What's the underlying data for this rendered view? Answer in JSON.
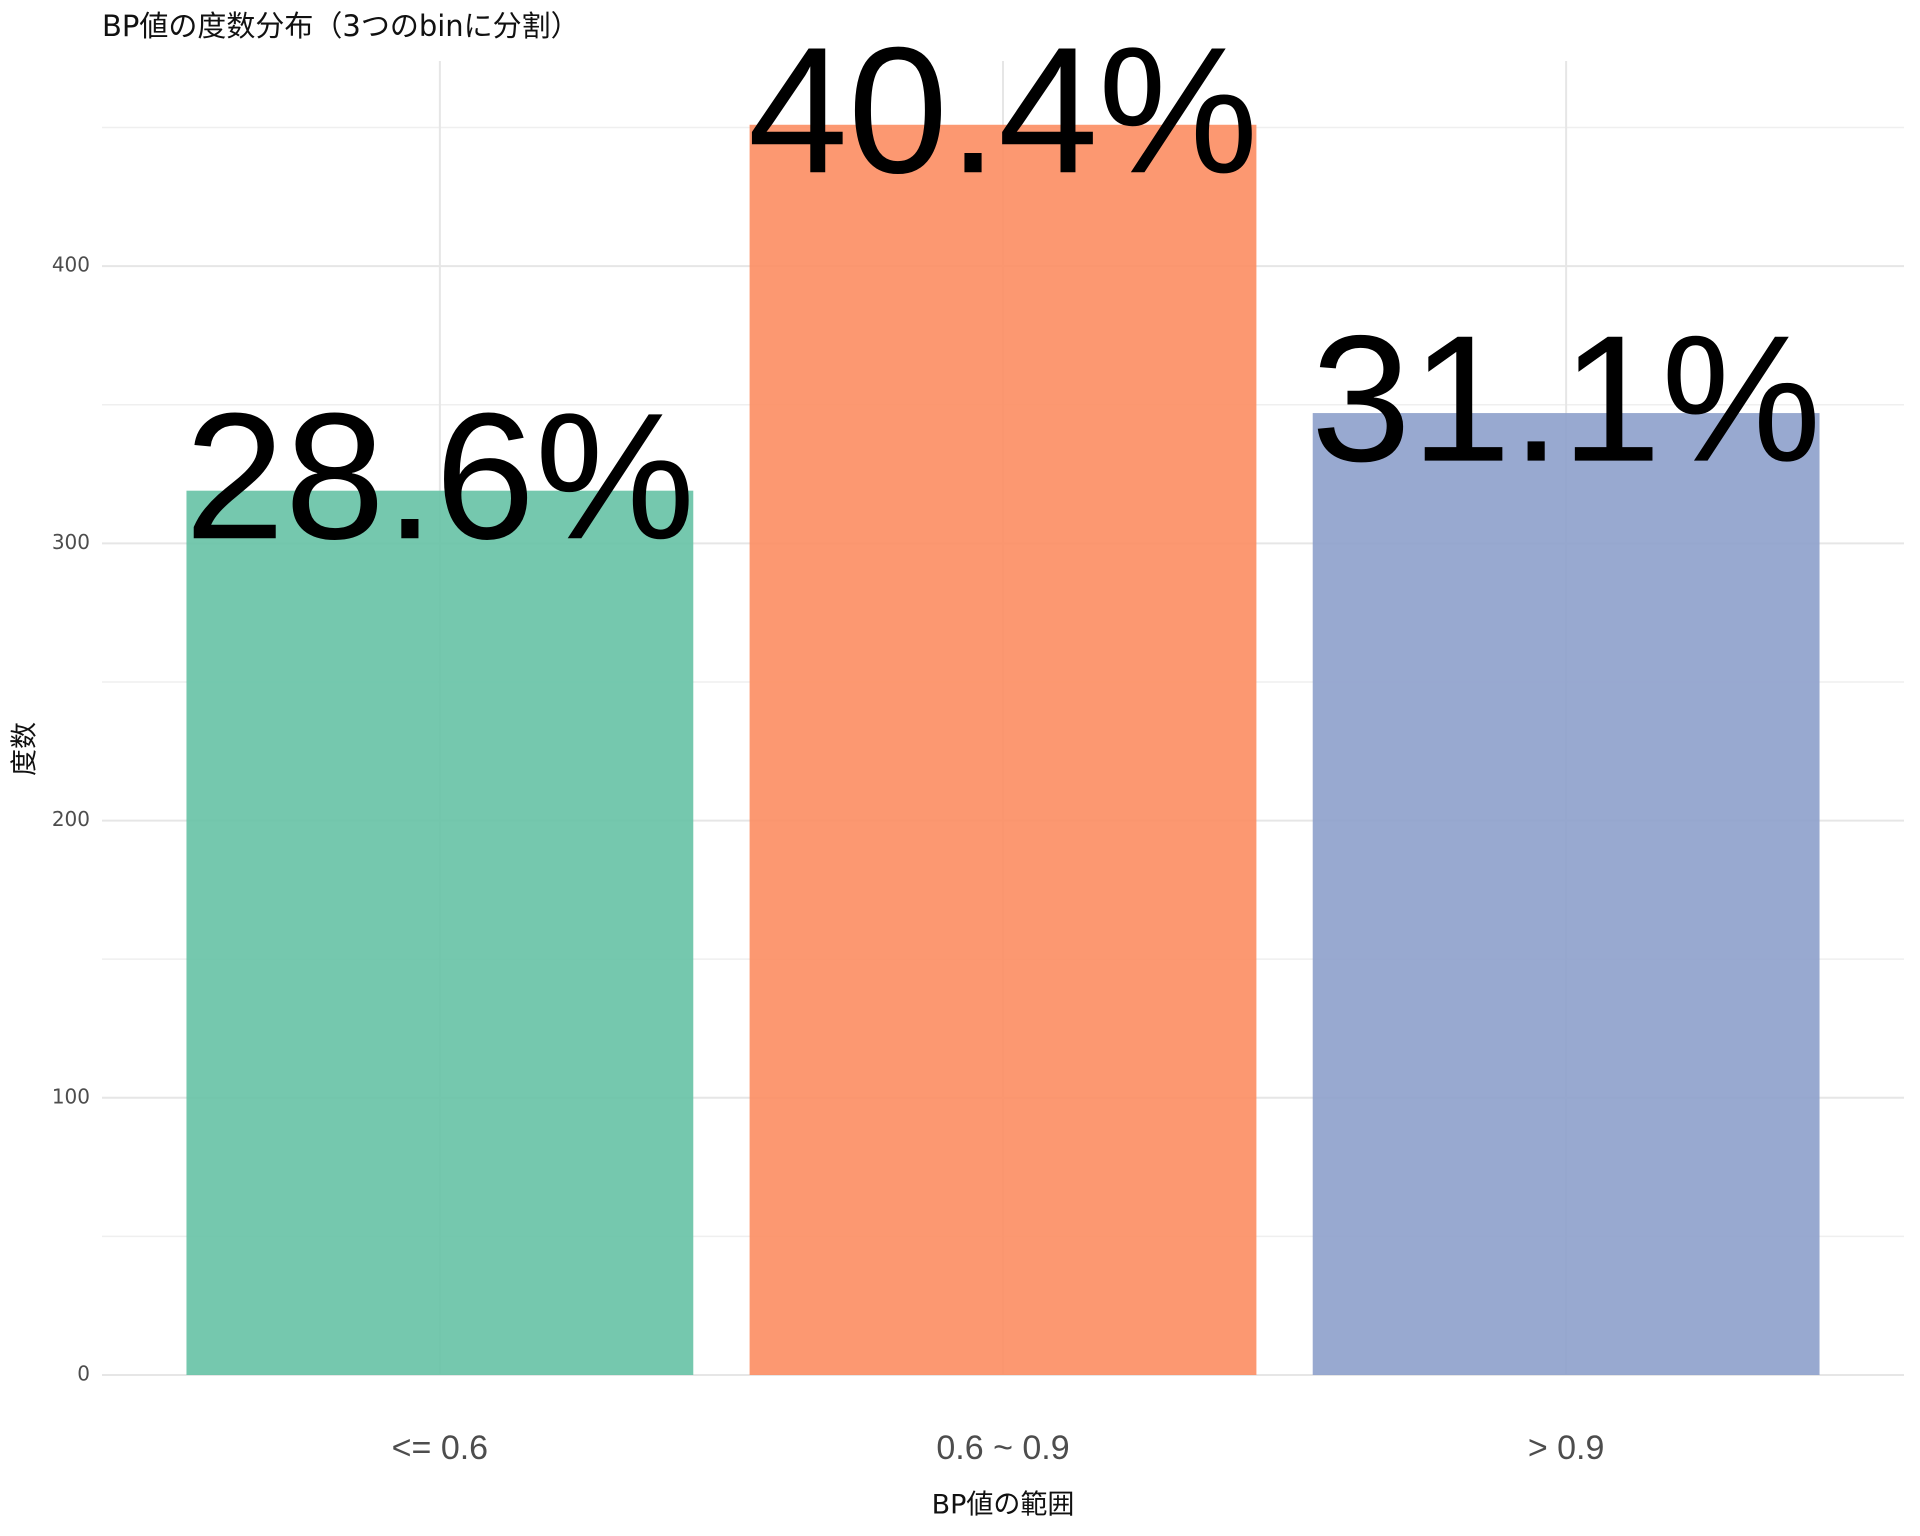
{
  "chart_data": {
    "type": "bar",
    "title": "BP値の度数分布（3つのbinに分割）",
    "x_label": "BP値の範囲",
    "y_label": "度数",
    "categories": [
      "<= 0.6",
      "0.6 ~ 0.9",
      "> 0.9"
    ],
    "values": [
      319,
      451,
      347
    ],
    "annotations": [
      "28.6%",
      "40.4%",
      "31.1%"
    ],
    "colors": [
      "#66c2a5",
      "#fc8d62",
      "#8da0cb"
    ],
    "ylim": [
      0,
      474
    ],
    "yticks": [
      0,
      100,
      200,
      300,
      400
    ],
    "grid": true
  }
}
